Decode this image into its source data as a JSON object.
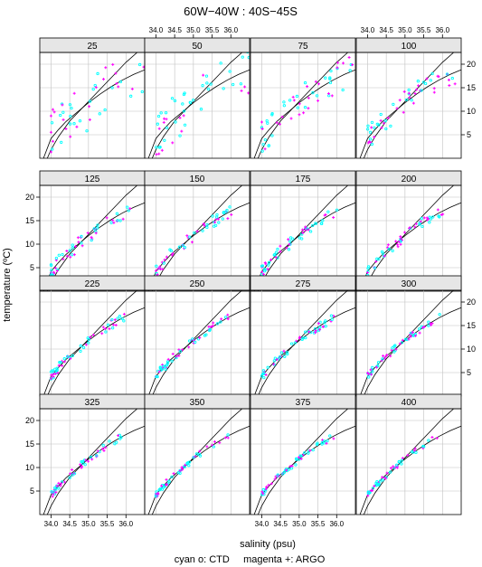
{
  "chart_data": {
    "type": "scatter",
    "title": "60W−40W : 40S−45S",
    "xlabel": "salinity (psu)",
    "ylabel": "temperature (ºC)",
    "footer": "cyan o: CTD     magenta +: ARGO",
    "xlim": [
      33.7,
      36.5
    ],
    "ylim": [
      0,
      22.5
    ],
    "x_ticks": [
      34.0,
      34.5,
      35.0,
      35.5,
      36.0
    ],
    "x_tick_labels": [
      "34.0",
      "34.5",
      "35.0",
      "35.5",
      "36.0"
    ],
    "y_ticks": [
      5,
      10,
      15,
      20
    ],
    "y_tick_labels": [
      "5",
      "10",
      "15",
      "20"
    ],
    "grid": true,
    "layout": {
      "columns": 4,
      "rows": 4
    },
    "panels": [
      {
        "label": "25",
        "spread": 2.6
      },
      {
        "label": "50",
        "spread": 2.2
      },
      {
        "label": "75",
        "spread": 1.6
      },
      {
        "label": "100",
        "spread": 1.2
      },
      {
        "label": "125",
        "spread": 0.7
      },
      {
        "label": "150",
        "spread": 0.6
      },
      {
        "label": "175",
        "spread": 0.55
      },
      {
        "label": "200",
        "spread": 0.5
      },
      {
        "label": "225",
        "spread": 0.45
      },
      {
        "label": "250",
        "spread": 0.4
      },
      {
        "label": "275",
        "spread": 0.4
      },
      {
        "label": "300",
        "spread": 0.35
      },
      {
        "label": "325",
        "spread": 0.35
      },
      {
        "label": "350",
        "spread": 0.3
      },
      {
        "label": "375",
        "spread": 0.3
      },
      {
        "label": "400",
        "spread": 0.3
      }
    ],
    "series": [
      {
        "name": "CTD",
        "marker": "o",
        "color": "#00ffff"
      },
      {
        "name": "ARGO",
        "marker": "+",
        "color": "#ff00ff"
      }
    ],
    "reference_curves": [
      {
        "x": [
          33.8,
          34.0,
          34.2,
          34.4,
          34.7,
          35.0,
          35.3,
          35.6,
          35.9,
          36.2,
          36.5
        ],
        "y": [
          0,
          4.2,
          6.1,
          7.8,
          9.8,
          11.8,
          13.6,
          15.2,
          16.6,
          17.8,
          18.8
        ]
      },
      {
        "x": [
          33.9,
          34.0,
          34.2,
          34.5,
          34.8,
          35.1,
          35.4,
          35.7,
          36.0,
          36.3
        ],
        "y": [
          0,
          1.8,
          4.6,
          7.9,
          10.4,
          12.9,
          15.4,
          17.9,
          20.4,
          22.5
        ]
      }
    ]
  },
  "colors": {
    "ctd": "#00ffff",
    "argo": "#ff00ff",
    "strip": "#e6e6e6",
    "grid": "#c0c0c0"
  }
}
